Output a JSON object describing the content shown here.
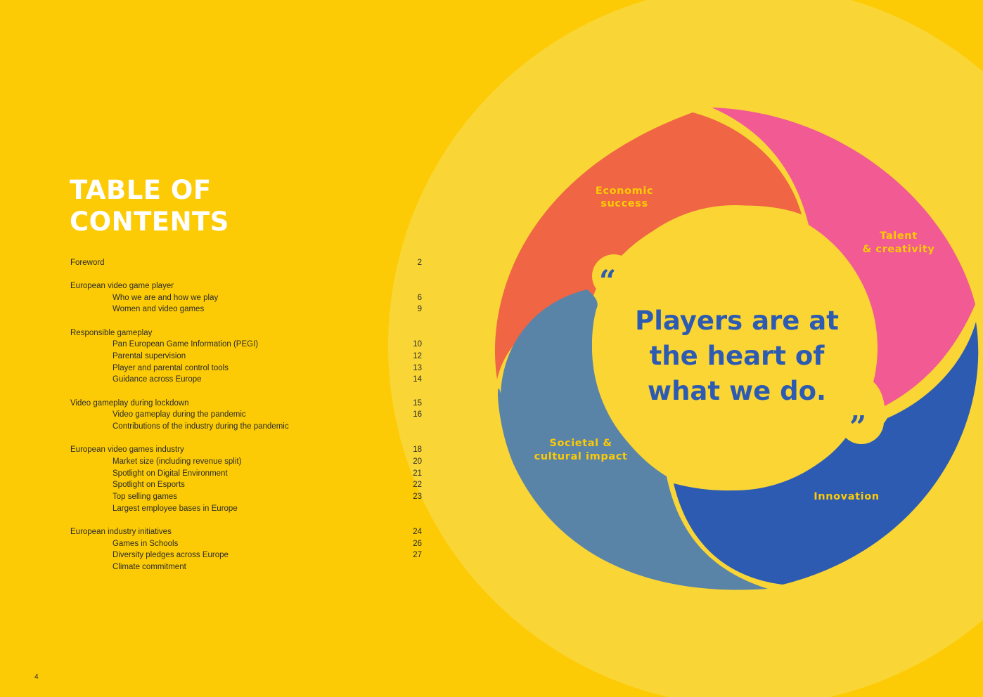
{
  "page": {
    "title_line1": "TABLE OF",
    "title_line2": "CONTENTS",
    "page_number": "4"
  },
  "toc": [
    {
      "label": "Foreword",
      "page": "2",
      "level": 1
    },
    {
      "label": "European video game player",
      "page": "",
      "level": 1
    },
    {
      "label": "Who we are and how we play",
      "page": "6",
      "level": 2
    },
    {
      "label": "Women and video games",
      "page": "9",
      "level": 2
    },
    {
      "label": "Responsible gameplay",
      "page": "",
      "level": 1
    },
    {
      "label": "Pan European Game Information (PEGI)",
      "page": "10",
      "level": 2
    },
    {
      "label": "Parental supervision",
      "page": "12",
      "level": 2
    },
    {
      "label": "Player and parental control tools",
      "page": "13",
      "level": 2
    },
    {
      "label": "Guidance across Europe",
      "page": "14",
      "level": 2
    },
    {
      "label": "Video gameplay during lockdown",
      "page": "15",
      "level": 1
    },
    {
      "label": "Video gameplay during the pandemic",
      "page": "16",
      "level": 2
    },
    {
      "label": "Contributions of the industry during the pandemic",
      "page": "",
      "level": 2
    },
    {
      "label": "European video games industry",
      "page": "18",
      "level": 1
    },
    {
      "label": "Market size (including revenue split)",
      "page": "20",
      "level": 2
    },
    {
      "label": "Spotlight on Digital Environment",
      "page": "21",
      "level": 2
    },
    {
      "label": "Spotlight on Esports",
      "page": "22",
      "level": 2
    },
    {
      "label": "Top selling games",
      "page": "23",
      "level": 2
    },
    {
      "label": "Largest employee bases in Europe",
      "page": "",
      "level": 2
    },
    {
      "label": "European industry initiatives",
      "page": "24",
      "level": 1
    },
    {
      "label": "Games in Schools",
      "page": "26",
      "level": 2
    },
    {
      "label": "Diversity pledges across Europe",
      "page": "27",
      "level": 2
    },
    {
      "label": "Climate commitment",
      "page": "",
      "level": 2
    }
  ],
  "wheel": {
    "segments": [
      {
        "line1": "Economic",
        "line2": "success",
        "color": "#F06543"
      },
      {
        "line1": "Talent",
        "line2": "& creativity",
        "color": "#F15A93"
      },
      {
        "line1": "Innovation",
        "line2": "",
        "color": "#2D5BB2"
      },
      {
        "line1": "Societal &",
        "line2": "cultural impact",
        "color": "#5A83A8"
      }
    ],
    "quote": {
      "line1": "Players are at",
      "line2": "the heart of",
      "line3": "what we do.",
      "open_mark": "“",
      "close_mark": "”"
    }
  },
  "colors": {
    "background": "#FCCB05",
    "halo": "#F9D636",
    "center": "#FAD534",
    "quote_text": "#2D5BB2",
    "title": "#FFFFFF"
  }
}
